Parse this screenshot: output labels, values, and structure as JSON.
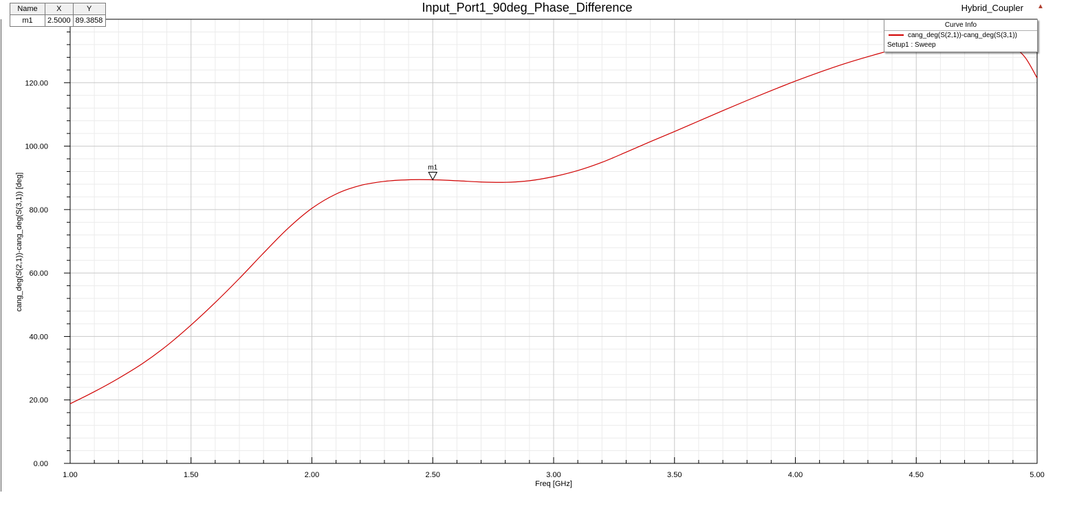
{
  "chart": {
    "title": "Input_Port1_90deg_Phase_Difference",
    "project": "Hybrid_Coupler"
  },
  "marker_table": {
    "headers": [
      "Name",
      "X",
      "Y"
    ],
    "rows": [
      [
        "m1",
        "2.5000",
        "89.3858"
      ]
    ]
  },
  "legend": {
    "header": "Curve Info",
    "trace_label": "cang_deg(S(2,1))-cang_deg(S(3,1))",
    "setup_label": "Setup1 : Sweep"
  },
  "chart_data": {
    "type": "line",
    "xlabel": "Freq [GHz]",
    "ylabel": "cang_deg(S(2,1))-cang_deg(S(3,1)) [deg]",
    "xlim": [
      1.0,
      5.0
    ],
    "ylim": [
      0.0,
      140.0
    ],
    "x_ticks": [
      "1.00",
      "1.50",
      "2.00",
      "2.50",
      "3.00",
      "3.50",
      "4.00",
      "4.50",
      "5.00"
    ],
    "y_ticks": [
      "0.00",
      "20.00",
      "40.00",
      "60.00",
      "80.00",
      "100.00",
      "120.00"
    ],
    "grid": true,
    "series": [
      {
        "name": "cang_deg(S(2,1))-cang_deg(S(3,1))",
        "color": "#d00000",
        "x": [
          1.0,
          1.1,
          1.2,
          1.3,
          1.4,
          1.5,
          1.6,
          1.7,
          1.8,
          1.9,
          2.0,
          2.1,
          2.2,
          2.3,
          2.4,
          2.5,
          2.6,
          2.7,
          2.8,
          2.9,
          3.0,
          3.1,
          3.2,
          3.3,
          3.4,
          3.5,
          3.6,
          3.7,
          3.8,
          3.9,
          4.0,
          4.1,
          4.2,
          4.3,
          4.4,
          4.5,
          4.6,
          4.7,
          4.8,
          4.9,
          4.95,
          5.0
        ],
        "y": [
          18.8,
          22.6,
          26.8,
          31.5,
          37.1,
          43.6,
          50.7,
          58.3,
          66.3,
          74.0,
          80.4,
          84.9,
          87.6,
          88.9,
          89.4,
          89.4,
          89.1,
          88.7,
          88.6,
          89.1,
          90.4,
          92.3,
          94.9,
          98.1,
          101.4,
          104.6,
          107.9,
          111.2,
          114.4,
          117.5,
          120.5,
          123.3,
          125.9,
          128.2,
          130.3,
          132.0,
          133.2,
          133.7,
          133.2,
          131.0,
          128.0,
          121.5
        ]
      }
    ],
    "markers": [
      {
        "name": "m1",
        "x": 2.5,
        "y": 89.3858
      }
    ]
  }
}
